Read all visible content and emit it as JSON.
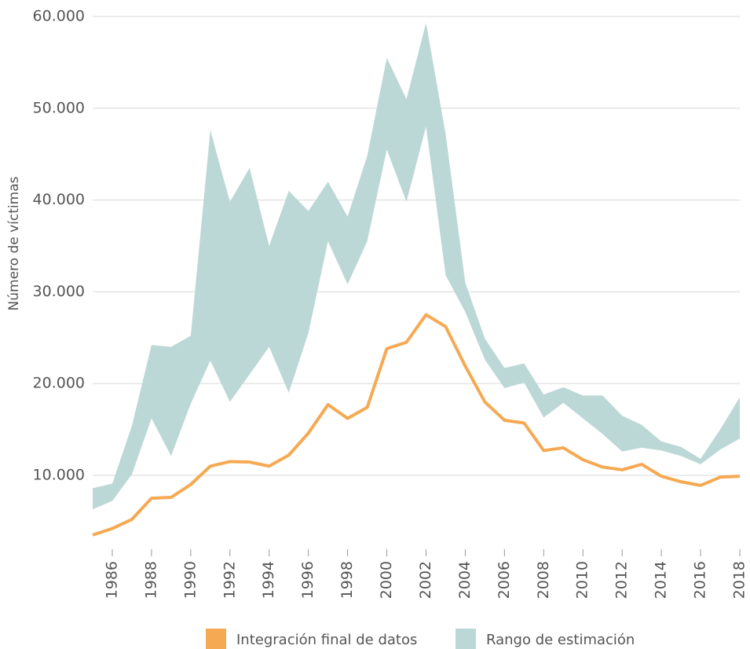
{
  "chart_data": {
    "type": "line",
    "y_label": "Número de víctimas",
    "x": [
      1985,
      1986,
      1987,
      1988,
      1989,
      1990,
      1991,
      1992,
      1993,
      1994,
      1995,
      1996,
      1997,
      1998,
      1999,
      2000,
      2001,
      2002,
      2003,
      2004,
      2005,
      2006,
      2007,
      2008,
      2009,
      2010,
      2011,
      2012,
      2013,
      2014,
      2015,
      2016,
      2017,
      2018
    ],
    "series": [
      {
        "name": "Integración final de datos",
        "color": "#f5a952",
        "values": [
          3500,
          4200,
          5200,
          7500,
          7600,
          9000,
          11000,
          11500,
          11450,
          11000,
          12200,
          14600,
          17700,
          16200,
          17400,
          23800,
          24500,
          27500,
          26200,
          21900,
          18000,
          16000,
          15700,
          12700,
          13000,
          11700,
          10900,
          10600,
          11200,
          9900,
          9300,
          8900,
          9800,
          9900
        ]
      }
    ],
    "band": {
      "name": "Rango de estimación",
      "color": "#bcd8d6",
      "upper": [
        8600,
        9100,
        15400,
        24200,
        24000,
        25200,
        47600,
        39800,
        43500,
        35000,
        41000,
        38800,
        42000,
        38200,
        44800,
        55500,
        51000,
        59300,
        47200,
        31000,
        24900,
        21700,
        22200,
        18800,
        19600,
        18700,
        18700,
        16500,
        15500,
        13700,
        13100,
        11800,
        15000,
        18500
      ],
      "lower": [
        6300,
        7200,
        10100,
        16200,
        12100,
        17800,
        22500,
        18000,
        21000,
        24000,
        19000,
        25500,
        35500,
        30800,
        35500,
        45500,
        39800,
        48000,
        31800,
        27800,
        22600,
        19500,
        20100,
        16300,
        17900,
        16200,
        14500,
        12600,
        13000,
        12700,
        12100,
        11200,
        12800,
        14000
      ]
    },
    "xlim": [
      1985,
      2018
    ],
    "xticks": [
      1986,
      1988,
      1990,
      1992,
      1994,
      1996,
      1998,
      2000,
      2002,
      2004,
      2006,
      2008,
      2010,
      2012,
      2014,
      2016,
      2018
    ],
    "ylim": [
      2000,
      61000
    ],
    "yticks": [
      {
        "value": 10000,
        "label": "10.000"
      },
      {
        "value": 20000,
        "label": "20.000"
      },
      {
        "value": 30000,
        "label": "30.000"
      },
      {
        "value": 40000,
        "label": "40.000"
      },
      {
        "value": 50000,
        "label": "50.000"
      },
      {
        "value": 60000,
        "label": "60.000"
      }
    ],
    "grid": true,
    "legend": "bottom"
  }
}
